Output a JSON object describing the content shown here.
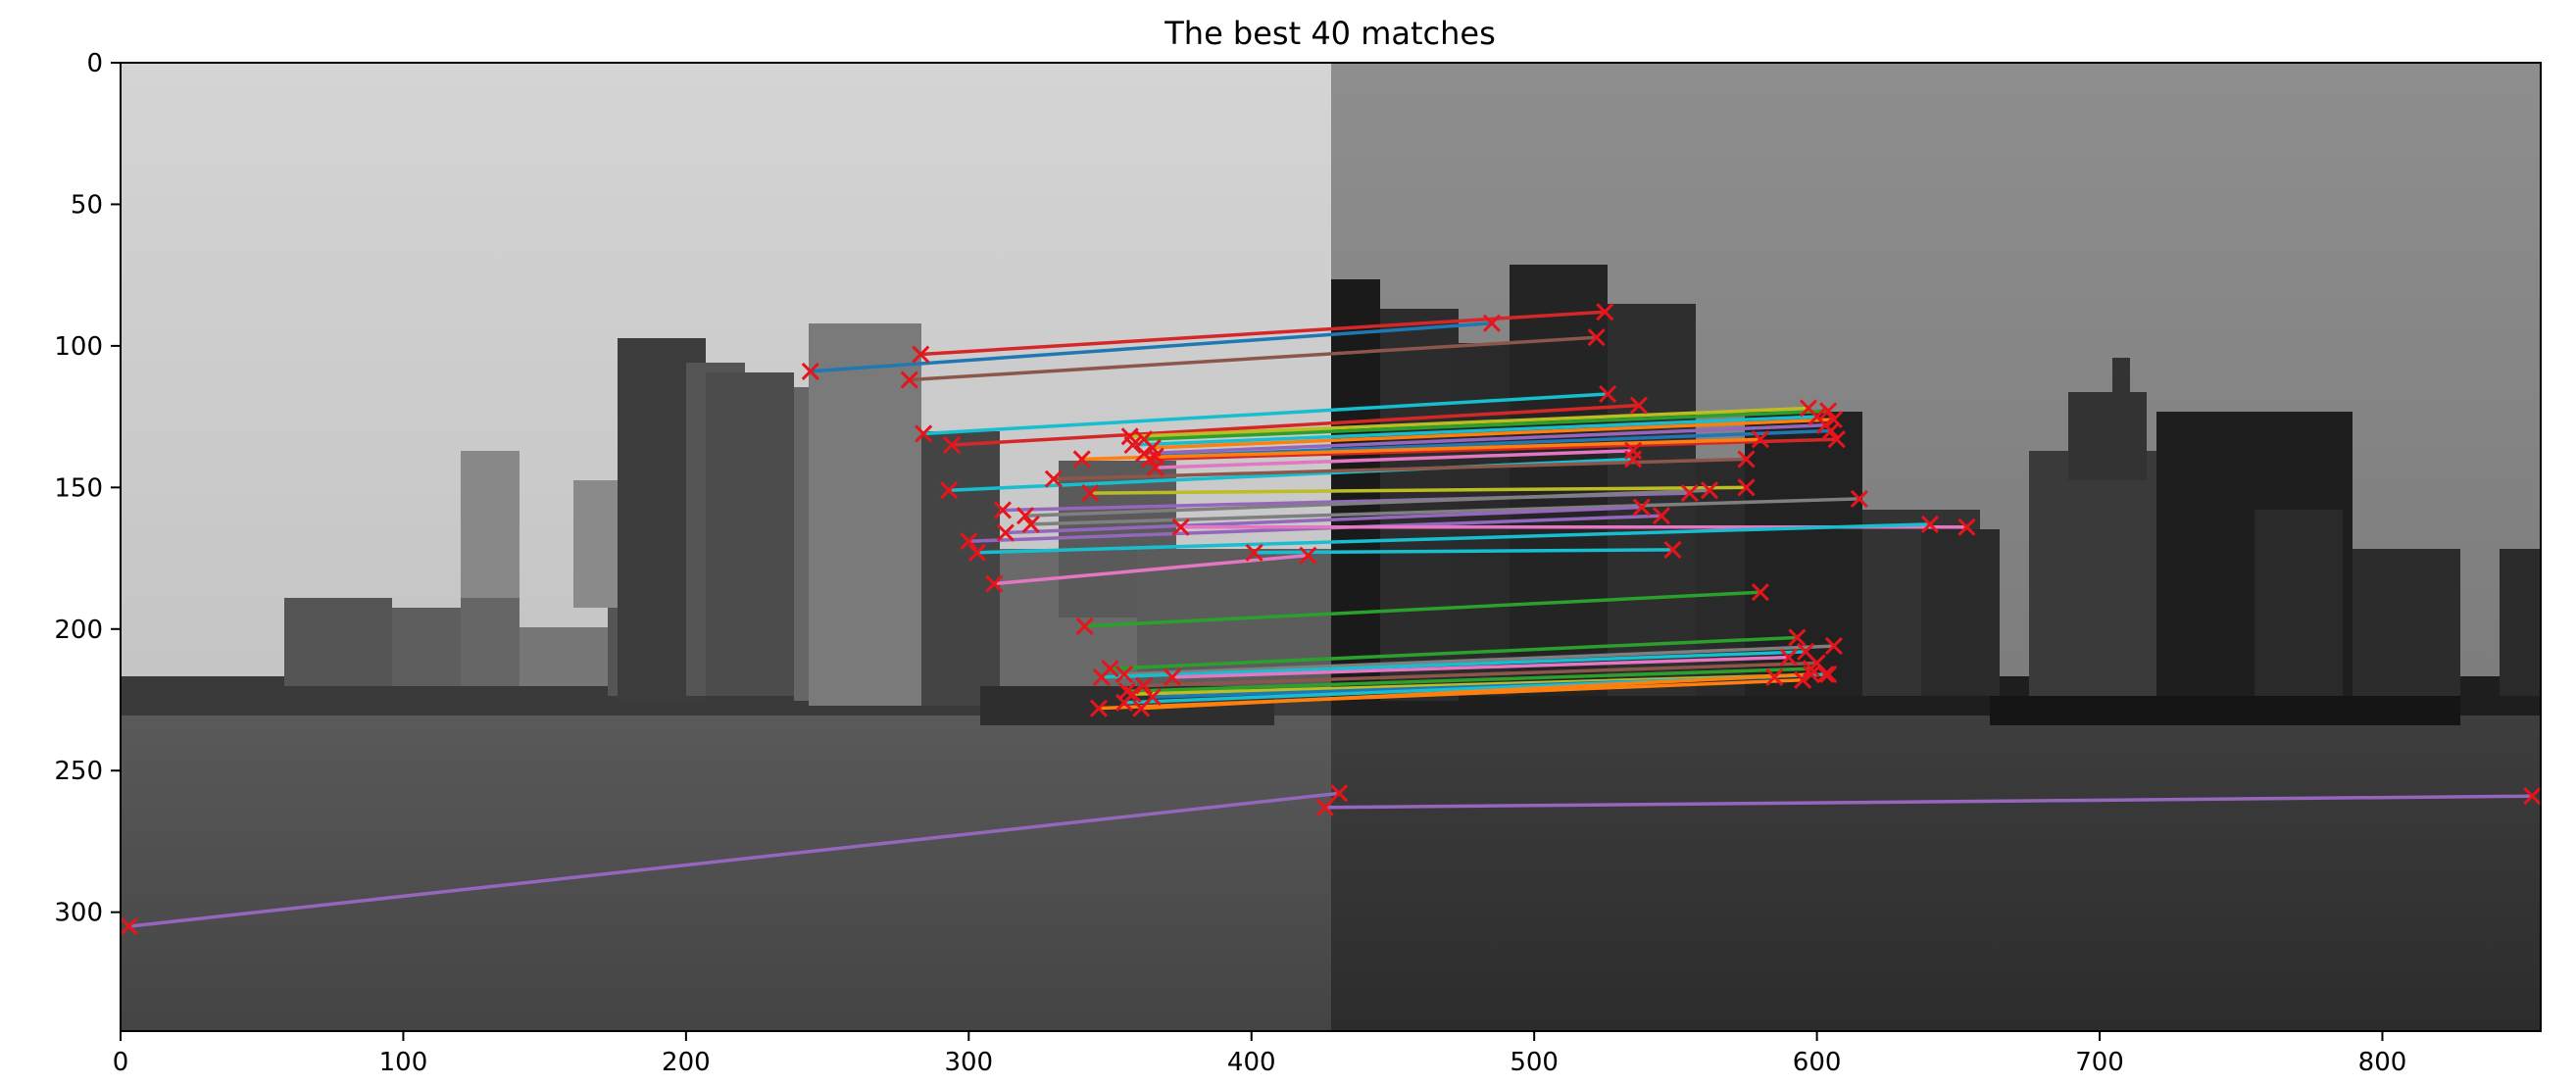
{
  "chart_data": {
    "type": "image-matches",
    "title": "The best 40 matches",
    "xlabel": "",
    "ylabel": "",
    "xlim": [
      0,
      856
    ],
    "ylim": [
      342,
      0
    ],
    "xticks": [
      0,
      100,
      200,
      300,
      400,
      500,
      600,
      700,
      800
    ],
    "yticks": [
      0,
      50,
      100,
      150,
      200,
      250,
      300
    ],
    "image_split_x": 428,
    "grid": false,
    "matches": [
      {
        "x1": 283,
        "y1": 103,
        "x2": 525,
        "y2": 88,
        "color": "#d62728"
      },
      {
        "x1": 244,
        "y1": 109,
        "x2": 485,
        "y2": 92,
        "color": "#1f77b4"
      },
      {
        "x1": 279,
        "y1": 112,
        "x2": 522,
        "y2": 97,
        "color": "#8c564b"
      },
      {
        "x1": 284,
        "y1": 131,
        "x2": 526,
        "y2": 117,
        "color": "#17becf"
      },
      {
        "x1": 294,
        "y1": 135,
        "x2": 537,
        "y2": 121,
        "color": "#d62728"
      },
      {
        "x1": 357,
        "y1": 132,
        "x2": 597,
        "y2": 122,
        "color": "#bcbd22"
      },
      {
        "x1": 362,
        "y1": 133,
        "x2": 604,
        "y2": 123,
        "color": "#2ca02c"
      },
      {
        "x1": 358,
        "y1": 135,
        "x2": 600,
        "y2": 125,
        "color": "#17becf"
      },
      {
        "x1": 365,
        "y1": 136,
        "x2": 606,
        "y2": 126,
        "color": "#ff7f0e"
      },
      {
        "x1": 362,
        "y1": 138,
        "x2": 603,
        "y2": 128,
        "color": "#9467bd"
      },
      {
        "x1": 366,
        "y1": 139,
        "x2": 605,
        "y2": 130,
        "color": "#1f77b4"
      },
      {
        "x1": 364,
        "y1": 140,
        "x2": 607,
        "y2": 133,
        "color": "#d62728"
      },
      {
        "x1": 340,
        "y1": 140,
        "x2": 580,
        "y2": 133,
        "color": "#ff7f0e"
      },
      {
        "x1": 366,
        "y1": 143,
        "x2": 535,
        "y2": 137,
        "color": "#e377c2"
      },
      {
        "x1": 293,
        "y1": 151,
        "x2": 535,
        "y2": 140,
        "color": "#17becf"
      },
      {
        "x1": 330,
        "y1": 147,
        "x2": 575,
        "y2": 140,
        "color": "#8c564b"
      },
      {
        "x1": 343,
        "y1": 152,
        "x2": 575,
        "y2": 150,
        "color": "#bcbd22"
      },
      {
        "x1": 312,
        "y1": 158,
        "x2": 555,
        "y2": 152,
        "color": "#9467bd"
      },
      {
        "x1": 320,
        "y1": 160,
        "x2": 562,
        "y2": 151,
        "color": "#7f7f7f"
      },
      {
        "x1": 322,
        "y1": 163,
        "x2": 615,
        "y2": 154,
        "color": "#7f7f7f"
      },
      {
        "x1": 313,
        "y1": 166,
        "x2": 538,
        "y2": 157,
        "color": "#9467bd"
      },
      {
        "x1": 300,
        "y1": 169,
        "x2": 545,
        "y2": 160,
        "color": "#9467bd"
      },
      {
        "x1": 375,
        "y1": 164,
        "x2": 653,
        "y2": 164,
        "color": "#e377c2"
      },
      {
        "x1": 303,
        "y1": 173,
        "x2": 640,
        "y2": 163,
        "color": "#17becf"
      },
      {
        "x1": 401,
        "y1": 173,
        "x2": 549,
        "y2": 172,
        "color": "#17becf"
      },
      {
        "x1": 309,
        "y1": 184,
        "x2": 420,
        "y2": 174,
        "color": "#e377c2"
      },
      {
        "x1": 341,
        "y1": 199,
        "x2": 580,
        "y2": 187,
        "color": "#2ca02c"
      },
      {
        "x1": 350,
        "y1": 214,
        "x2": 593,
        "y2": 203,
        "color": "#2ca02c"
      },
      {
        "x1": 355,
        "y1": 216,
        "x2": 606,
        "y2": 206,
        "color": "#7f7f7f"
      },
      {
        "x1": 347,
        "y1": 217,
        "x2": 596,
        "y2": 208,
        "color": "#17becf"
      },
      {
        "x1": 372,
        "y1": 217,
        "x2": 590,
        "y2": 210,
        "color": "#e377c2"
      },
      {
        "x1": 362,
        "y1": 220,
        "x2": 600,
        "y2": 212,
        "color": "#8c564b"
      },
      {
        "x1": 356,
        "y1": 222,
        "x2": 598,
        "y2": 214,
        "color": "#2ca02c"
      },
      {
        "x1": 358,
        "y1": 223,
        "x2": 604,
        "y2": 216,
        "color": "#bcbd22"
      },
      {
        "x1": 365,
        "y1": 224,
        "x2": 585,
        "y2": 217,
        "color": "#1f77b4"
      },
      {
        "x1": 355,
        "y1": 226,
        "x2": 603,
        "y2": 216,
        "color": "#17becf"
      },
      {
        "x1": 346,
        "y1": 228,
        "x2": 595,
        "y2": 218,
        "color": "#ff7f0e"
      },
      {
        "x1": 361,
        "y1": 228,
        "x2": 598,
        "y2": 216,
        "color": "#ff7f0e"
      },
      {
        "x1": 3,
        "y1": 305,
        "x2": 431,
        "y2": 258,
        "color": "#9467bd"
      },
      {
        "x1": 426,
        "y1": 263,
        "x2": 853,
        "y2": 259,
        "color": "#9467bd"
      }
    ],
    "marker": "x",
    "marker_color": "#e8141b"
  }
}
